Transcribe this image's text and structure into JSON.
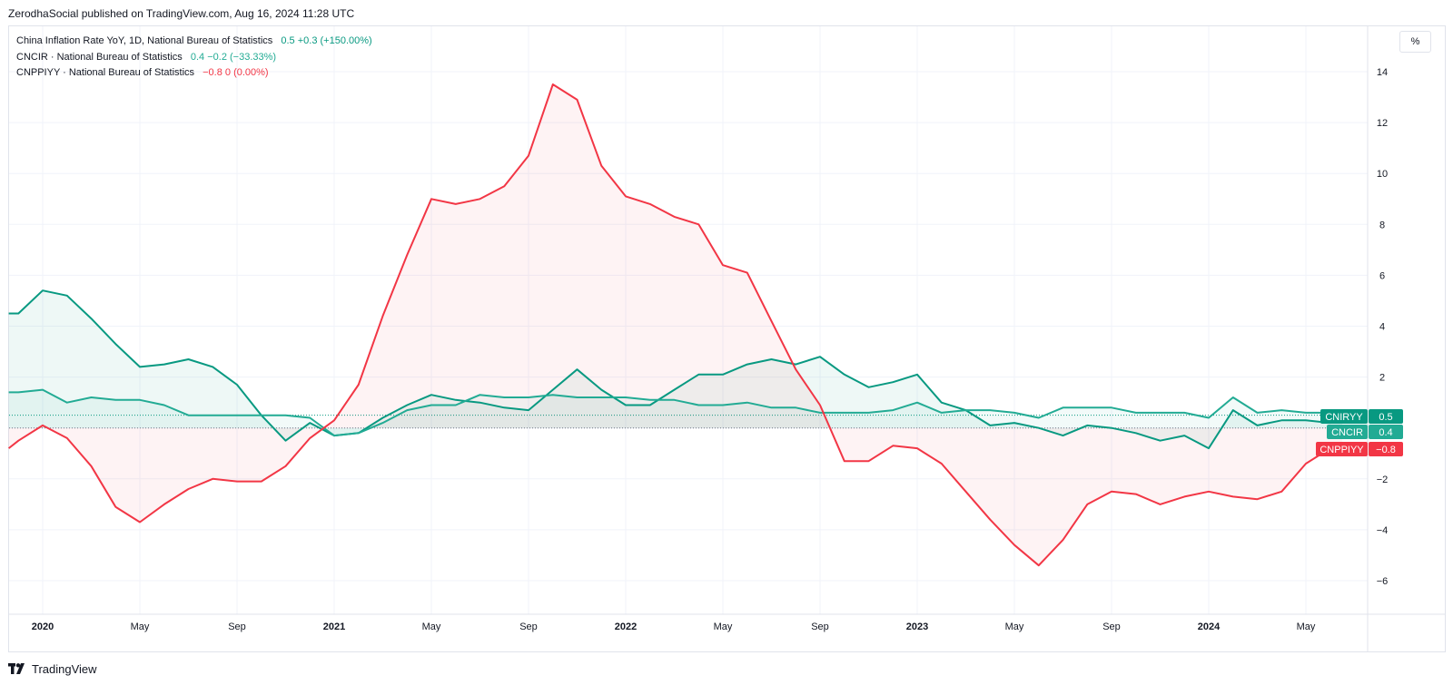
{
  "header": {
    "publish_text": "ZerodhaSocial published on TradingView.com, Aug 16, 2024 11:28 UTC"
  },
  "legend": [
    {
      "name": "China Inflation Rate YoY, 1D, National Bureau of Statistics",
      "value": "0.5",
      "change": "+0.3 (+150.00%)",
      "color": "#089981"
    },
    {
      "name": "CNCIR · National Bureau of Statistics",
      "value": "0.4",
      "change": "−0.2 (−33.33%)",
      "color": "#22ab94"
    },
    {
      "name": "CNPPIYY · National Bureau of Statistics",
      "value": "−0.8",
      "change": "0 (0.00%)",
      "color": "#f23645"
    }
  ],
  "unit_button": "%",
  "footer": {
    "brand": "TradingView"
  },
  "chart_data": {
    "type": "line",
    "y_axis": {
      "ticks": [
        14,
        12,
        10,
        8,
        6,
        4,
        2,
        0,
        -2,
        -4,
        -6
      ],
      "tick_labels": [
        "14",
        "12",
        "10",
        "8",
        "6",
        "4",
        "2",
        "",
        "−2",
        "−4",
        "−6"
      ],
      "range": [
        -7.2,
        15.5
      ]
    },
    "x_axis": {
      "ticks": [
        {
          "label": "2020",
          "month": 0,
          "bold": true
        },
        {
          "label": "May",
          "month": 4,
          "bold": false
        },
        {
          "label": "Sep",
          "month": 8,
          "bold": false
        },
        {
          "label": "2021",
          "month": 12,
          "bold": true
        },
        {
          "label": "May",
          "month": 16,
          "bold": false
        },
        {
          "label": "Sep",
          "month": 20,
          "bold": false
        },
        {
          "label": "2022",
          "month": 24,
          "bold": true
        },
        {
          "label": "May",
          "month": 28,
          "bold": false
        },
        {
          "label": "Sep",
          "month": 32,
          "bold": false
        },
        {
          "label": "2023",
          "month": 36,
          "bold": true
        },
        {
          "label": "May",
          "month": 40,
          "bold": false
        },
        {
          "label": "Sep",
          "month": 44,
          "bold": false
        },
        {
          "label": "2024",
          "month": 48,
          "bold": true
        },
        {
          "label": "May",
          "month": 52,
          "bold": false
        }
      ],
      "first_month": -1.4,
      "last_month": 53.5
    },
    "series": [
      {
        "name": "CNIRYY",
        "color": "#089981",
        "fill": "rgba(8,153,129,0.07)",
        "last_value": "0.5",
        "points": [
          [
            -1.4,
            4.5
          ],
          [
            -1,
            4.5
          ],
          [
            0,
            5.4
          ],
          [
            1,
            5.2
          ],
          [
            2,
            4.3
          ],
          [
            3,
            3.3
          ],
          [
            4,
            2.4
          ],
          [
            5,
            2.5
          ],
          [
            6,
            2.7
          ],
          [
            7,
            2.4
          ],
          [
            8,
            1.7
          ],
          [
            9,
            0.5
          ],
          [
            10,
            -0.5
          ],
          [
            11,
            0.2
          ],
          [
            12,
            -0.3
          ],
          [
            13,
            -0.2
          ],
          [
            14,
            0.4
          ],
          [
            15,
            0.9
          ],
          [
            16,
            1.3
          ],
          [
            17,
            1.1
          ],
          [
            18,
            1.0
          ],
          [
            19,
            0.8
          ],
          [
            20,
            0.7
          ],
          [
            21,
            1.5
          ],
          [
            22,
            2.3
          ],
          [
            23,
            1.5
          ],
          [
            24,
            0.9
          ],
          [
            25,
            0.9
          ],
          [
            26,
            1.5
          ],
          [
            27,
            2.1
          ],
          [
            28,
            2.1
          ],
          [
            29,
            2.5
          ],
          [
            30,
            2.7
          ],
          [
            31,
            2.5
          ],
          [
            32,
            2.8
          ],
          [
            33,
            2.1
          ],
          [
            34,
            1.6
          ],
          [
            35,
            1.8
          ],
          [
            36,
            2.1
          ],
          [
            37,
            1.0
          ],
          [
            38,
            0.7
          ],
          [
            39,
            0.1
          ],
          [
            40,
            0.2
          ],
          [
            41,
            0.0
          ],
          [
            42,
            -0.3
          ],
          [
            43,
            0.1
          ],
          [
            44,
            0.0
          ],
          [
            45,
            -0.2
          ],
          [
            46,
            -0.5
          ],
          [
            47,
            -0.3
          ],
          [
            48,
            -0.8
          ],
          [
            49,
            0.7
          ],
          [
            50,
            0.1
          ],
          [
            51,
            0.3
          ],
          [
            52,
            0.3
          ],
          [
            53,
            0.2
          ],
          [
            53.5,
            0.5
          ]
        ]
      },
      {
        "name": "CNCIR",
        "color": "#22ab94",
        "fill": "rgba(34,171,148,0.06)",
        "last_value": "0.4",
        "points": [
          [
            -1.4,
            1.4
          ],
          [
            -1,
            1.4
          ],
          [
            0,
            1.5
          ],
          [
            1,
            1.0
          ],
          [
            2,
            1.2
          ],
          [
            3,
            1.1
          ],
          [
            4,
            1.1
          ],
          [
            5,
            0.9
          ],
          [
            6,
            0.5
          ],
          [
            7,
            0.5
          ],
          [
            8,
            0.5
          ],
          [
            9,
            0.5
          ],
          [
            10,
            0.5
          ],
          [
            11,
            0.4
          ],
          [
            12,
            -0.3
          ],
          [
            13,
            -0.2
          ],
          [
            14,
            0.2
          ],
          [
            15,
            0.7
          ],
          [
            16,
            0.9
          ],
          [
            17,
            0.9
          ],
          [
            18,
            1.3
          ],
          [
            19,
            1.2
          ],
          [
            20,
            1.2
          ],
          [
            21,
            1.3
          ],
          [
            22,
            1.2
          ],
          [
            23,
            1.2
          ],
          [
            24,
            1.2
          ],
          [
            25,
            1.1
          ],
          [
            26,
            1.1
          ],
          [
            27,
            0.9
          ],
          [
            28,
            0.9
          ],
          [
            29,
            1.0
          ],
          [
            30,
            0.8
          ],
          [
            31,
            0.8
          ],
          [
            32,
            0.6
          ],
          [
            33,
            0.6
          ],
          [
            34,
            0.6
          ],
          [
            35,
            0.7
          ],
          [
            36,
            1.0
          ],
          [
            37,
            0.6
          ],
          [
            38,
            0.7
          ],
          [
            39,
            0.7
          ],
          [
            40,
            0.6
          ],
          [
            41,
            0.4
          ],
          [
            42,
            0.8
          ],
          [
            43,
            0.8
          ],
          [
            44,
            0.8
          ],
          [
            45,
            0.6
          ],
          [
            46,
            0.6
          ],
          [
            47,
            0.6
          ],
          [
            48,
            0.4
          ],
          [
            49,
            1.2
          ],
          [
            50,
            0.6
          ],
          [
            51,
            0.7
          ],
          [
            52,
            0.6
          ],
          [
            53,
            0.6
          ],
          [
            53.5,
            0.4
          ]
        ]
      },
      {
        "name": "CNPPIYY",
        "color": "#f23645",
        "fill": "rgba(242,54,69,0.06)",
        "last_value": "−0.8",
        "points": [
          [
            -1.4,
            -0.8
          ],
          [
            -1,
            -0.5
          ],
          [
            0,
            0.1
          ],
          [
            1,
            -0.4
          ],
          [
            2,
            -1.5
          ],
          [
            3,
            -3.1
          ],
          [
            4,
            -3.7
          ],
          [
            5,
            -3.0
          ],
          [
            6,
            -2.4
          ],
          [
            7,
            -2.0
          ],
          [
            8,
            -2.1
          ],
          [
            9,
            -2.1
          ],
          [
            10,
            -1.5
          ],
          [
            11,
            -0.4
          ],
          [
            12,
            0.3
          ],
          [
            13,
            1.7
          ],
          [
            14,
            4.4
          ],
          [
            15,
            6.8
          ],
          [
            16,
            9.0
          ],
          [
            17,
            8.8
          ],
          [
            18,
            9.0
          ],
          [
            19,
            9.5
          ],
          [
            20,
            10.7
          ],
          [
            21,
            13.5
          ],
          [
            22,
            12.9
          ],
          [
            23,
            10.3
          ],
          [
            24,
            9.1
          ],
          [
            25,
            8.8
          ],
          [
            26,
            8.3
          ],
          [
            27,
            8.0
          ],
          [
            28,
            6.4
          ],
          [
            29,
            6.1
          ],
          [
            30,
            4.2
          ],
          [
            31,
            2.3
          ],
          [
            32,
            0.9
          ],
          [
            33,
            -1.3
          ],
          [
            34,
            -1.3
          ],
          [
            35,
            -0.7
          ],
          [
            36,
            -0.8
          ],
          [
            37,
            -1.4
          ],
          [
            38,
            -2.5
          ],
          [
            39,
            -3.6
          ],
          [
            40,
            -4.6
          ],
          [
            41,
            -5.4
          ],
          [
            42,
            -4.4
          ],
          [
            43,
            -3.0
          ],
          [
            44,
            -2.5
          ],
          [
            45,
            -2.6
          ],
          [
            46,
            -3.0
          ],
          [
            47,
            -2.7
          ],
          [
            48,
            -2.5
          ],
          [
            49,
            -2.7
          ],
          [
            50,
            -2.8
          ],
          [
            51,
            -2.5
          ],
          [
            52,
            -1.4
          ],
          [
            53,
            -0.8
          ],
          [
            53.5,
            -0.8
          ]
        ]
      }
    ],
    "zero_line": 0
  }
}
